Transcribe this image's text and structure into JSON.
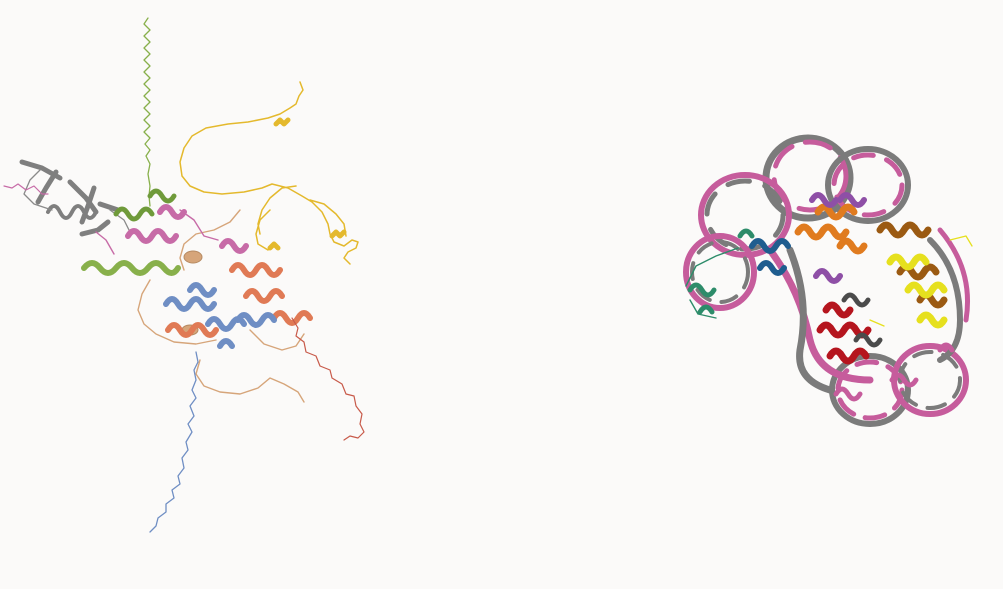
{
  "viewer": {
    "background": "#fbfaf9",
    "left_structure": {
      "kind": "predicted protein structure (ribbon)",
      "chain_colors": [
        "#7f7f7f",
        "#88b04b",
        "#c76ba7",
        "#e4b92d",
        "#d6a57a",
        "#6f8ec4",
        "#e07a55",
        "#c85a4a"
      ]
    },
    "right_structure": {
      "kind": "nucleosome-like protein-DNA complex (ribbon)",
      "chain_colors": [
        "#c65c9c",
        "#7b7b7b",
        "#e07b1f",
        "#e6e01e",
        "#8e4fa6",
        "#1f5d8f",
        "#2d8c6a",
        "#b5151e",
        "#9b5a12"
      ]
    }
  }
}
